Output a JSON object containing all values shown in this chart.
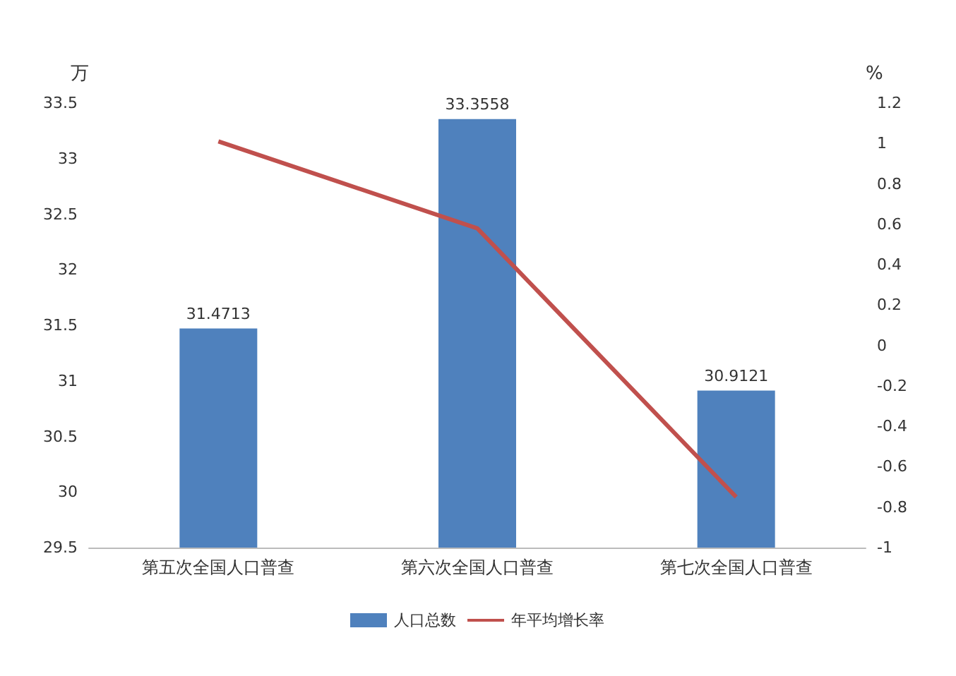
{
  "chart_data": {
    "type": "bar",
    "ylabel": "万",
    "y2label": "%",
    "categories": [
      "第五次全国人口普查",
      "第六次全国人口普查",
      "第七次全国人口普查"
    ],
    "series": [
      {
        "name": "人口总数",
        "color": "#4f81bd",
        "values": [
          31.4713,
          33.3558,
          30.9121
        ],
        "value_labels": [
          "31.4713",
          "33.3558",
          "30.9121"
        ]
      },
      {
        "name": "年平均增长率",
        "type": "line",
        "axis": "y2",
        "color": "#c0504d",
        "values": [
          1.01,
          0.58,
          -0.75
        ]
      }
    ],
    "ylim": [
      29.5,
      33.5
    ],
    "yticks": [
      29.5,
      30,
      30.5,
      31,
      31.5,
      32,
      32.5,
      33,
      33.5
    ],
    "y2lim": [
      -1,
      1.2
    ],
    "y2ticks": [
      -1,
      -0.8,
      -0.6,
      -0.4,
      -0.2,
      0,
      0.2,
      0.4,
      0.6,
      0.8,
      1,
      1.2
    ],
    "grid": false,
    "legend": "bottom",
    "marker": "none",
    "line_style": "solid"
  }
}
